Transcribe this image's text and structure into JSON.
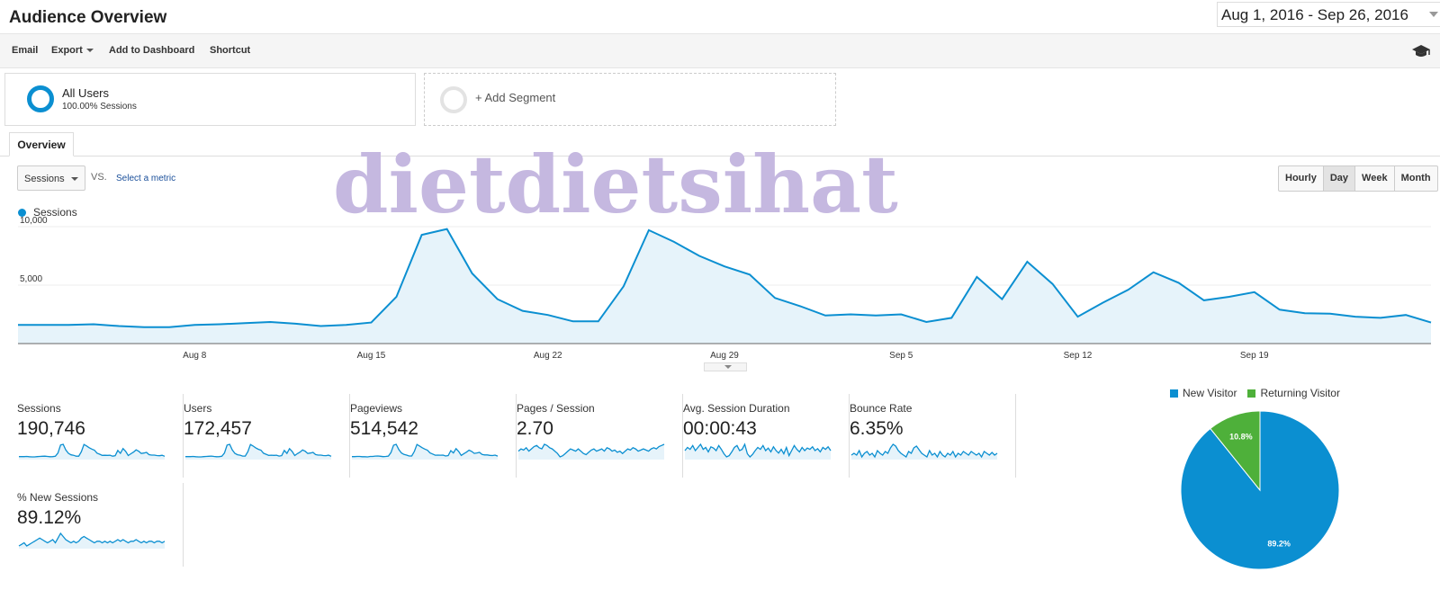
{
  "header": {
    "title": "Audience Overview",
    "date_range": "Aug 1, 2016 - Sep 26, 2016"
  },
  "toolbar": {
    "email": "Email",
    "export": "Export",
    "add_to_dashboard": "Add to Dashboard",
    "shortcut": "Shortcut",
    "right_icon": "graduation-cap-icon"
  },
  "segments": {
    "active": {
      "name": "All Users",
      "subtitle": "100.00% Sessions"
    },
    "add": "+ Add Segment"
  },
  "tabs": [
    "Overview"
  ],
  "controls": {
    "metric": "Sessions",
    "vs": "VS.",
    "select_metric": "Select a metric",
    "granularity": [
      "Hourly",
      "Day",
      "Week",
      "Month"
    ],
    "granularity_selected": "Day"
  },
  "colors": {
    "series": "#0b8fd1",
    "fill": "#e6f3fa",
    "new_visitor": "#0b8fd1",
    "returning_visitor": "#4eb03a"
  },
  "watermark": "dietdietsihat",
  "chart_data": [
    {
      "type": "area",
      "series": [
        {
          "name": "Sessions",
          "values": [
            1600,
            1600,
            1600,
            1650,
            1500,
            1400,
            1400,
            1600,
            1650,
            1750,
            1850,
            1700,
            1500,
            1600,
            1800,
            4000,
            9300,
            9800,
            6000,
            3800,
            2800,
            2450,
            1900,
            1900,
            4900,
            9700,
            8700,
            7500,
            6600,
            5900,
            3900,
            3200,
            2400,
            2500,
            2400,
            2500,
            1850,
            2200,
            5700,
            3800,
            7000,
            5100,
            2300,
            3500,
            4600,
            6100,
            5200,
            3700,
            4000,
            4400,
            2900,
            2600,
            2550,
            2300,
            2200,
            2450,
            1800
          ]
        }
      ],
      "x_tick_labels": [
        "Aug 8",
        "Aug 15",
        "Aug 22",
        "Aug 29",
        "Sep 5",
        "Sep 12",
        "Sep 19"
      ],
      "y_tick_labels": [
        "10,000",
        "5,000"
      ],
      "ylim": [
        0,
        10000
      ]
    },
    {
      "type": "pie",
      "series": [
        {
          "name": "New Visitor",
          "value": 89.2,
          "label": "89.2%"
        },
        {
          "name": "Returning Visitor",
          "value": 10.8,
          "label": "10.8%"
        }
      ]
    }
  ],
  "metrics": [
    {
      "label": "Sessions",
      "value": "190,746",
      "spark": [
        16,
        16,
        16,
        17,
        15,
        14,
        14,
        16,
        17,
        18,
        19,
        17,
        15,
        16,
        18,
        40,
        93,
        98,
        60,
        38,
        28,
        25,
        19,
        19,
        49,
        97,
        87,
        75,
        66,
        59,
        39,
        32,
        24,
        25,
        24,
        25,
        19,
        22,
        57,
        38,
        70,
        51,
        23,
        35,
        46,
        61,
        52,
        37,
        40,
        44,
        29,
        26,
        26,
        23,
        22,
        25,
        18
      ]
    },
    {
      "label": "Users",
      "value": "172,457",
      "spark": [
        15,
        15,
        15,
        16,
        14,
        13,
        13,
        15,
        16,
        17,
        18,
        16,
        14,
        15,
        17,
        38,
        90,
        95,
        58,
        36,
        27,
        24,
        18,
        18,
        47,
        94,
        84,
        72,
        63,
        57,
        37,
        30,
        23,
        24,
        23,
        24,
        18,
        21,
        55,
        36,
        67,
        49,
        22,
        34,
        44,
        58,
        50,
        35,
        38,
        42,
        28,
        25,
        25,
        22,
        21,
        24,
        17
      ]
    },
    {
      "label": "Pageviews",
      "value": "514,542",
      "spark": [
        16,
        16,
        17,
        17,
        15,
        15,
        14,
        17,
        17,
        19,
        20,
        18,
        16,
        17,
        19,
        42,
        90,
        96,
        62,
        40,
        30,
        26,
        20,
        20,
        50,
        95,
        85,
        74,
        65,
        58,
        40,
        33,
        25,
        26,
        25,
        26,
        20,
        23,
        55,
        40,
        68,
        50,
        24,
        35,
        45,
        58,
        50,
        37,
        40,
        43,
        30,
        27,
        27,
        24,
        23,
        26,
        19
      ]
    },
    {
      "label": "Pages / Session",
      "value": "2.70",
      "spark": [
        50,
        52,
        51,
        53,
        50,
        52,
        54,
        55,
        53,
        52,
        56,
        55,
        53,
        52,
        50,
        48,
        45,
        46,
        48,
        50,
        52,
        51,
        50,
        52,
        50,
        48,
        47,
        49,
        51,
        52,
        50,
        51,
        52,
        50,
        53,
        52,
        50,
        51,
        49,
        50,
        48,
        50,
        52,
        51,
        53,
        52,
        50,
        51,
        52,
        51,
        50,
        52,
        53,
        52,
        54,
        55,
        56
      ]
    },
    {
      "label": "Avg. Session Duration",
      "value": "00:00:43",
      "spark": [
        50,
        55,
        52,
        58,
        50,
        55,
        60,
        52,
        55,
        48,
        56,
        54,
        50,
        58,
        52,
        45,
        40,
        42,
        48,
        55,
        58,
        50,
        52,
        60,
        45,
        40,
        44,
        50,
        55,
        52,
        58,
        50,
        54,
        48,
        56,
        50,
        46,
        52,
        45,
        55,
        42,
        50,
        58,
        52,
        48,
        55,
        50,
        54,
        52,
        56,
        50,
        53,
        48,
        55,
        52,
        56,
        50
      ]
    },
    {
      "label": "Bounce Rate",
      "value": "6.35%",
      "spark": [
        50,
        52,
        50,
        55,
        48,
        52,
        54,
        50,
        52,
        48,
        55,
        52,
        50,
        54,
        52,
        58,
        62,
        60,
        55,
        52,
        50,
        48,
        54,
        52,
        58,
        60,
        56,
        52,
        50,
        48,
        55,
        50,
        52,
        48,
        54,
        50,
        48,
        52,
        50,
        54,
        48,
        52,
        50,
        54,
        52,
        50,
        54,
        52,
        50,
        52,
        48,
        54,
        52,
        50,
        53,
        50,
        52
      ]
    },
    {
      "label": "% New Sessions",
      "value": "89.12%",
      "spark": [
        50,
        51,
        52,
        50,
        51,
        52,
        53,
        54,
        55,
        54,
        53,
        52,
        53,
        54,
        52,
        55,
        58,
        56,
        54,
        53,
        52,
        53,
        52,
        53,
        55,
        56,
        55,
        54,
        53,
        52,
        53,
        53,
        52,
        53,
        52,
        53,
        52,
        53,
        54,
        53,
        54,
        53,
        52,
        53,
        53,
        54,
        53,
        52,
        53,
        52,
        53,
        53,
        52,
        53,
        53,
        52,
        53
      ]
    }
  ]
}
